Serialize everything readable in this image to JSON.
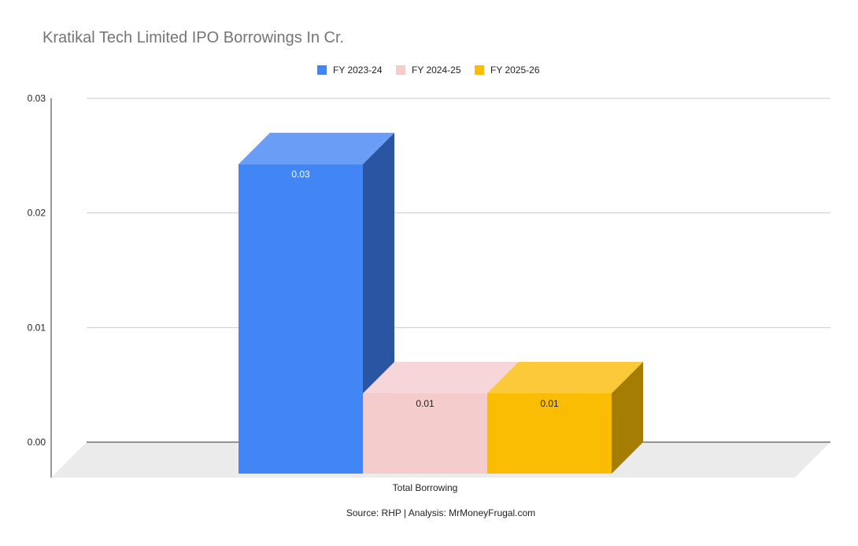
{
  "chart_data": {
    "type": "bar",
    "title": "Kratikal Tech Limited IPO Borrowings In Cr.",
    "categories": [
      "Total Borrowing"
    ],
    "series": [
      {
        "name": "FY 2023-24",
        "values": [
          0.027
        ],
        "label": "0.03",
        "color": "#4285F4",
        "top_color": "#6A9EF6",
        "side_color": "#2A55A2",
        "label_color": "#ffffff"
      },
      {
        "name": "FY 2024-25",
        "values": [
          0.007
        ],
        "label": "0.01",
        "color": "#F4CCCC",
        "top_color": "#F6D6D8",
        "side_color": "#C3A1A4",
        "label_color": "#222222"
      },
      {
        "name": "FY 2025-26",
        "values": [
          0.007
        ],
        "label": "0.01",
        "color": "#FBBC04",
        "top_color": "#FBC93A",
        "side_color": "#A47D02",
        "label_color": "#222222"
      }
    ],
    "yticks": [
      "0.00",
      "0.01",
      "0.02",
      "0.03"
    ],
    "ylim": [
      0,
      0.03
    ],
    "xlabel": "",
    "ylabel": "",
    "legend": "top",
    "grid": true,
    "three_d": true
  },
  "footer": {
    "source": "Source: RHP | Analysis: MrMoneyFrugal.com"
  }
}
